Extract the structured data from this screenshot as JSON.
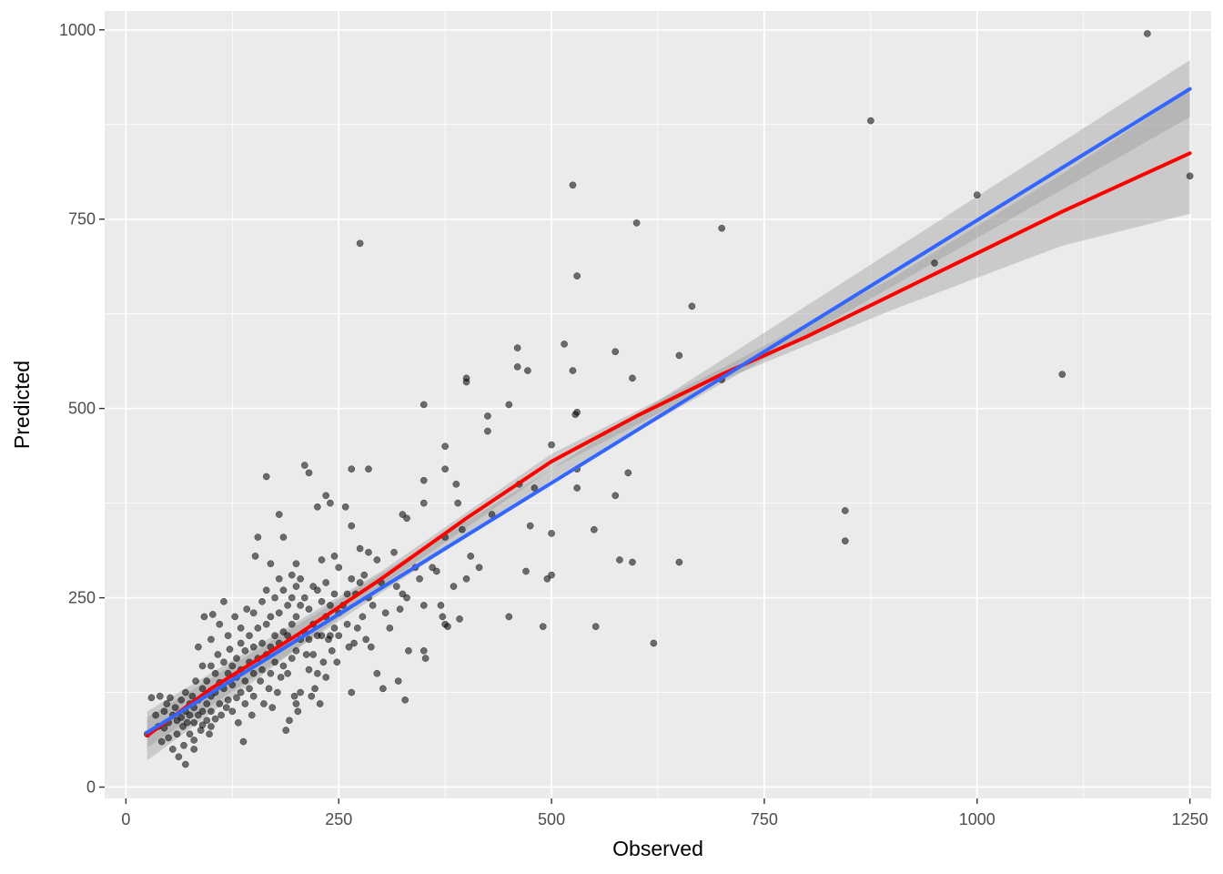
{
  "chart_data": {
    "type": "scatter",
    "title": "",
    "xlabel": "Observed",
    "ylabel": "Predicted",
    "xlim": [
      -25,
      1275
    ],
    "ylim": [
      -15,
      1025
    ],
    "x_ticks": [
      0,
      250,
      500,
      750,
      1000,
      1250
    ],
    "y_ticks": [
      0,
      250,
      500,
      750,
      1000
    ],
    "x_tick_labels": [
      "0",
      "250",
      "500",
      "750",
      "1000",
      "1250"
    ],
    "y_tick_labels": [
      "0",
      "250",
      "500",
      "750",
      "1000"
    ],
    "grid": true,
    "legend": "none",
    "colors": {
      "panel": "#ebebeb",
      "grid": "#ffffff",
      "points": "#000000",
      "linear_fit": "#3366ff",
      "smooth_fit": "#ff0000",
      "confidence_band": "#999999"
    },
    "points": [
      [
        25,
        70
      ],
      [
        30,
        118
      ],
      [
        35,
        95
      ],
      [
        38,
        80
      ],
      [
        40,
        120
      ],
      [
        42,
        60
      ],
      [
        45,
        100
      ],
      [
        45,
        78
      ],
      [
        48,
        110
      ],
      [
        50,
        85
      ],
      [
        50,
        65
      ],
      [
        52,
        118
      ],
      [
        55,
        95
      ],
      [
        55,
        50
      ],
      [
        58,
        105
      ],
      [
        60,
        88
      ],
      [
        60,
        70
      ],
      [
        62,
        40
      ],
      [
        65,
        115
      ],
      [
        65,
        92
      ],
      [
        67,
        80
      ],
      [
        68,
        55
      ],
      [
        70,
        125
      ],
      [
        70,
        100
      ],
      [
        70,
        30
      ],
      [
        72,
        85
      ],
      [
        75,
        110
      ],
      [
        75,
        95
      ],
      [
        75,
        70
      ],
      [
        78,
        120
      ],
      [
        80,
        105
      ],
      [
        80,
        85
      ],
      [
        80,
        62
      ],
      [
        80,
        50
      ],
      [
        82,
        140
      ],
      [
        85,
        185
      ],
      [
        85,
        115
      ],
      [
        85,
        95
      ],
      [
        88,
        75
      ],
      [
        90,
        160
      ],
      [
        90,
        130
      ],
      [
        90,
        100
      ],
      [
        90,
        82
      ],
      [
        92,
        225
      ],
      [
        95,
        140
      ],
      [
        95,
        110
      ],
      [
        95,
        88
      ],
      [
        98,
        70
      ],
      [
        100,
        195
      ],
      [
        100,
        160
      ],
      [
        100,
        120
      ],
      [
        100,
        100
      ],
      [
        100,
        80
      ],
      [
        102,
        228
      ],
      [
        105,
        150
      ],
      [
        105,
        125
      ],
      [
        105,
        90
      ],
      [
        108,
        175
      ],
      [
        110,
        215
      ],
      [
        110,
        138
      ],
      [
        110,
        110
      ],
      [
        112,
        95
      ],
      [
        115,
        245
      ],
      [
        115,
        165
      ],
      [
        115,
        130
      ],
      [
        118,
        105
      ],
      [
        120,
        200
      ],
      [
        120,
        150
      ],
      [
        120,
        115
      ],
      [
        122,
        182
      ],
      [
        125,
        160
      ],
      [
        125,
        135
      ],
      [
        125,
        100
      ],
      [
        128,
        225
      ],
      [
        130,
        170
      ],
      [
        130,
        145
      ],
      [
        130,
        118
      ],
      [
        132,
        85
      ],
      [
        135,
        210
      ],
      [
        135,
        190
      ],
      [
        135,
        155
      ],
      [
        135,
        125
      ],
      [
        138,
        60
      ],
      [
        140,
        180
      ],
      [
        140,
        140
      ],
      [
        140,
        110
      ],
      [
        142,
        235
      ],
      [
        145,
        200
      ],
      [
        145,
        165
      ],
      [
        145,
        130
      ],
      [
        148,
        95
      ],
      [
        150,
        230
      ],
      [
        150,
        185
      ],
      [
        150,
        150
      ],
      [
        150,
        120
      ],
      [
        152,
        305
      ],
      [
        155,
        330
      ],
      [
        155,
        210
      ],
      [
        155,
        170
      ],
      [
        158,
        140
      ],
      [
        160,
        245
      ],
      [
        160,
        190
      ],
      [
        160,
        155
      ],
      [
        162,
        110
      ],
      [
        165,
        410
      ],
      [
        165,
        260
      ],
      [
        165,
        215
      ],
      [
        165,
        175
      ],
      [
        168,
        130
      ],
      [
        170,
        295
      ],
      [
        170,
        225
      ],
      [
        170,
        185
      ],
      [
        170,
        150
      ],
      [
        172,
        105
      ],
      [
        175,
        250
      ],
      [
        175,
        200
      ],
      [
        175,
        165
      ],
      [
        178,
        125
      ],
      [
        180,
        360
      ],
      [
        180,
        275
      ],
      [
        180,
        230
      ],
      [
        180,
        190
      ],
      [
        182,
        145
      ],
      [
        185,
        330
      ],
      [
        185,
        260
      ],
      [
        185,
        205
      ],
      [
        185,
        160
      ],
      [
        188,
        75
      ],
      [
        190,
        240
      ],
      [
        190,
        200
      ],
      [
        190,
        150
      ],
      [
        192,
        88
      ],
      [
        195,
        280
      ],
      [
        195,
        250
      ],
      [
        195,
        215
      ],
      [
        195,
        170
      ],
      [
        198,
        120
      ],
      [
        200,
        295
      ],
      [
        200,
        265
      ],
      [
        200,
        225
      ],
      [
        200,
        180
      ],
      [
        200,
        110
      ],
      [
        202,
        100
      ],
      [
        205,
        275
      ],
      [
        205,
        240
      ],
      [
        205,
        195
      ],
      [
        205,
        125
      ],
      [
        210,
        425
      ],
      [
        210,
        250
      ],
      [
        210,
        205
      ],
      [
        212,
        175
      ],
      [
        215,
        415
      ],
      [
        215,
        235
      ],
      [
        215,
        195
      ],
      [
        215,
        155
      ],
      [
        218,
        120
      ],
      [
        220,
        265
      ],
      [
        220,
        215
      ],
      [
        220,
        175
      ],
      [
        222,
        130
      ],
      [
        225,
        370
      ],
      [
        225,
        260
      ],
      [
        225,
        200
      ],
      [
        225,
        150
      ],
      [
        228,
        110
      ],
      [
        230,
        300
      ],
      [
        230,
        245
      ],
      [
        230,
        200
      ],
      [
        232,
        165
      ],
      [
        235,
        385
      ],
      [
        235,
        270
      ],
      [
        235,
        225
      ],
      [
        235,
        145
      ],
      [
        238,
        195
      ],
      [
        240,
        375
      ],
      [
        240,
        240
      ],
      [
        240,
        200
      ],
      [
        242,
        180
      ],
      [
        245,
        305
      ],
      [
        245,
        255
      ],
      [
        245,
        210
      ],
      [
        248,
        165
      ],
      [
        250,
        290
      ],
      [
        250,
        230
      ],
      [
        250,
        200
      ],
      [
        255,
        240
      ],
      [
        258,
        370
      ],
      [
        260,
        255
      ],
      [
        260,
        215
      ],
      [
        262,
        185
      ],
      [
        265,
        420
      ],
      [
        265,
        345
      ],
      [
        265,
        275
      ],
      [
        265,
        125
      ],
      [
        268,
        190
      ],
      [
        270,
        255
      ],
      [
        272,
        210
      ],
      [
        275,
        718
      ],
      [
        275,
        315
      ],
      [
        275,
        270
      ],
      [
        278,
        225
      ],
      [
        280,
        280
      ],
      [
        282,
        195
      ],
      [
        285,
        420
      ],
      [
        285,
        310
      ],
      [
        285,
        250
      ],
      [
        288,
        185
      ],
      [
        290,
        240
      ],
      [
        295,
        300
      ],
      [
        295,
        150
      ],
      [
        300,
        270
      ],
      [
        302,
        130
      ],
      [
        305,
        230
      ],
      [
        310,
        210
      ],
      [
        315,
        310
      ],
      [
        318,
        265
      ],
      [
        320,
        140
      ],
      [
        322,
        235
      ],
      [
        325,
        360
      ],
      [
        325,
        255
      ],
      [
        328,
        115
      ],
      [
        330,
        355
      ],
      [
        330,
        250
      ],
      [
        332,
        180
      ],
      [
        340,
        290
      ],
      [
        345,
        275
      ],
      [
        350,
        505
      ],
      [
        350,
        405
      ],
      [
        350,
        375
      ],
      [
        350,
        240
      ],
      [
        350,
        180
      ],
      [
        352,
        170
      ],
      [
        360,
        290
      ],
      [
        365,
        285
      ],
      [
        370,
        240
      ],
      [
        372,
        225
      ],
      [
        375,
        450
      ],
      [
        375,
        420
      ],
      [
        375,
        330
      ],
      [
        375,
        215
      ],
      [
        378,
        212
      ],
      [
        385,
        265
      ],
      [
        388,
        400
      ],
      [
        390,
        375
      ],
      [
        392,
        222
      ],
      [
        395,
        340
      ],
      [
        400,
        540
      ],
      [
        400,
        535
      ],
      [
        400,
        275
      ],
      [
        405,
        305
      ],
      [
        415,
        290
      ],
      [
        425,
        490
      ],
      [
        425,
        470
      ],
      [
        430,
        360
      ],
      [
        450,
        505
      ],
      [
        450,
        225
      ],
      [
        460,
        580
      ],
      [
        460,
        555
      ],
      [
        462,
        400
      ],
      [
        470,
        285
      ],
      [
        472,
        550
      ],
      [
        475,
        345
      ],
      [
        480,
        395
      ],
      [
        490,
        212
      ],
      [
        495,
        275
      ],
      [
        500,
        452
      ],
      [
        500,
        335
      ],
      [
        500,
        280
      ],
      [
        515,
        585
      ],
      [
        525,
        795
      ],
      [
        525,
        550
      ],
      [
        528,
        492
      ],
      [
        530,
        675
      ],
      [
        530,
        495
      ],
      [
        530,
        420
      ],
      [
        530,
        395
      ],
      [
        550,
        340
      ],
      [
        552,
        212
      ],
      [
        575,
        575
      ],
      [
        575,
        385
      ],
      [
        580,
        300
      ],
      [
        590,
        415
      ],
      [
        595,
        540
      ],
      [
        595,
        297
      ],
      [
        600,
        745
      ],
      [
        650,
        570
      ],
      [
        650,
        297
      ],
      [
        665,
        635
      ],
      [
        700,
        738
      ],
      [
        700,
        538
      ],
      [
        620,
        190
      ],
      [
        845,
        365
      ],
      [
        845,
        325
      ],
      [
        875,
        880
      ],
      [
        950,
        692
      ],
      [
        1000,
        782
      ],
      [
        1100,
        545
      ],
      [
        1200,
        995
      ],
      [
        1250,
        807
      ]
    ],
    "linear_fit": {
      "x": [
        25,
        1250
      ],
      "y": [
        72,
        922
      ]
    },
    "smooth_fit": {
      "x": [
        25,
        100,
        200,
        300,
        400,
        500,
        600,
        700,
        800,
        900,
        1000,
        1100,
        1250
      ],
      "y": [
        68,
        130,
        200,
        275,
        355,
        430,
        490,
        545,
        595,
        650,
        705,
        760,
        837
      ]
    },
    "linear_band": {
      "x": [
        25,
        500,
        1250
      ],
      "lower": [
        52,
        405,
        885
      ],
      "upper": [
        92,
        420,
        960
      ]
    },
    "smooth_band": {
      "x": [
        25,
        300,
        500,
        700,
        900,
        1100,
        1250
      ],
      "lower": [
        35,
        265,
        420,
        537,
        630,
        715,
        757
      ],
      "upper": [
        100,
        285,
        440,
        553,
        672,
        810,
        920
      ]
    }
  }
}
